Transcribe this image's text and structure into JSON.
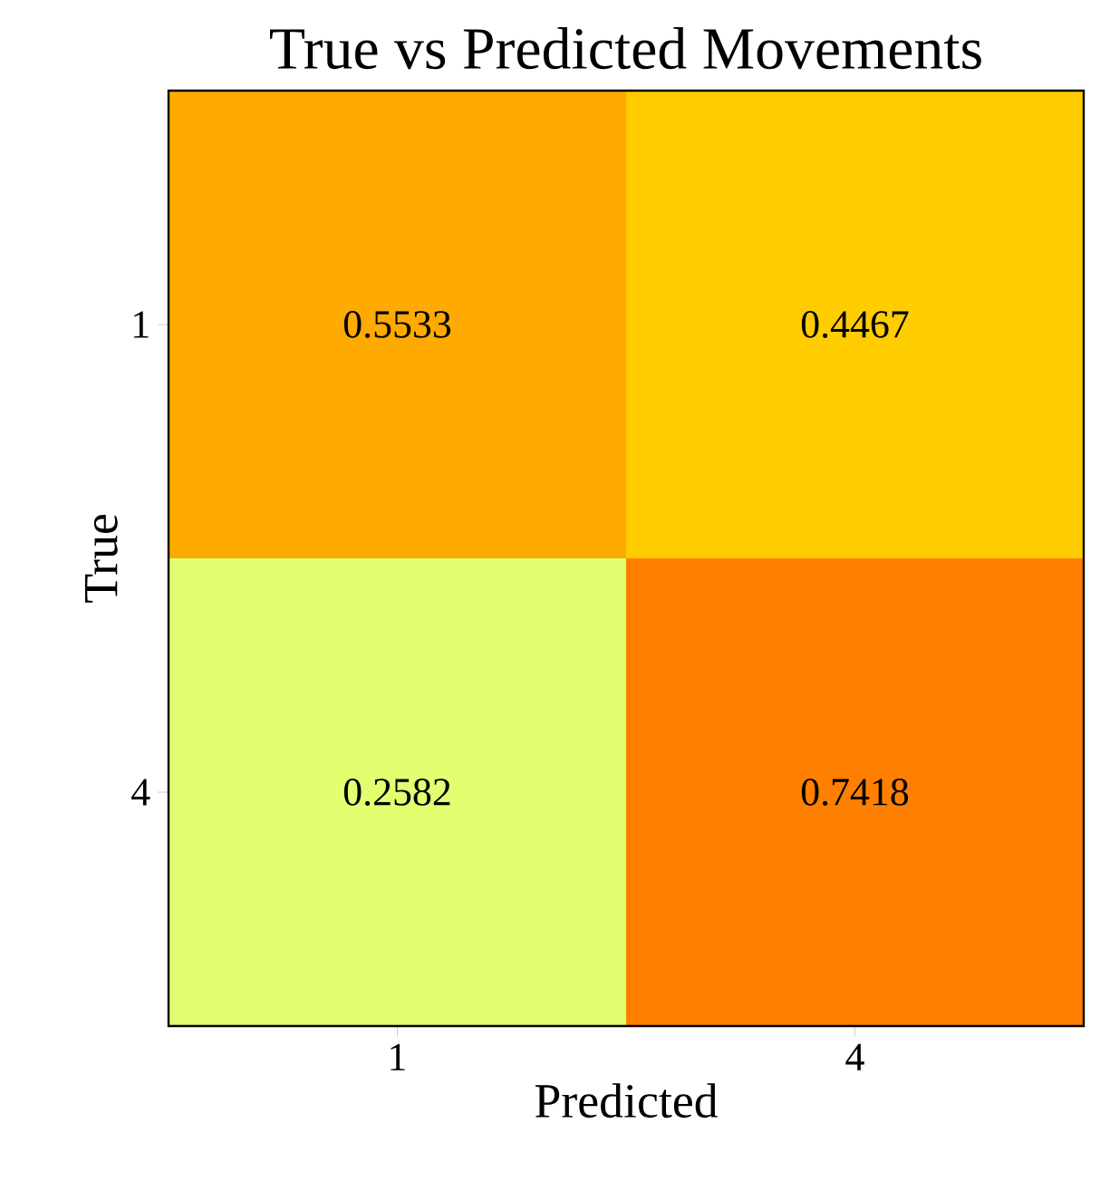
{
  "chart_data": {
    "type": "heatmap",
    "title": "True vs Predicted Movements",
    "xlabel": "Predicted",
    "ylabel": "True",
    "categories": [
      "1",
      "4"
    ],
    "y_categories": [
      "1",
      "4"
    ],
    "cells": [
      [
        0.5533,
        0.4467
      ],
      [
        0.2582,
        0.7418
      ]
    ],
    "colors": [
      [
        "#ffaa00",
        "#ffcc00"
      ],
      [
        "#e2ff70",
        "#ff8000"
      ]
    ],
    "data_labels": true
  }
}
